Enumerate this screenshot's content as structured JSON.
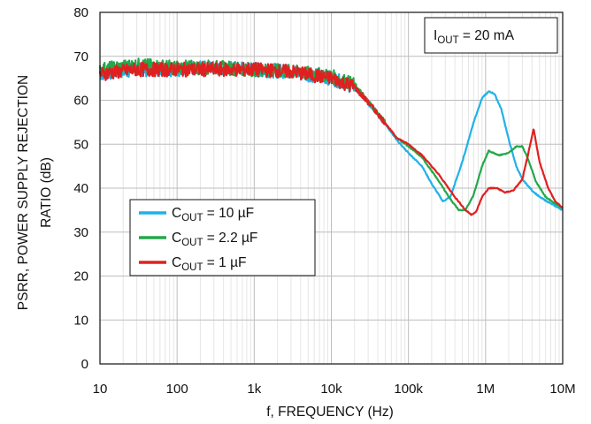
{
  "chart_data": {
    "type": "line",
    "xscale": "log",
    "xlim": [
      10,
      10000000
    ],
    "ylim": [
      0,
      80
    ],
    "xlabel": "f, FREQUENCY (Hz)",
    "ylabel_line1": "PSRR, POWER SUPPLY REJECTION",
    "ylabel_line2": "RATIO (dB)",
    "x_ticks": [
      {
        "value": 10,
        "label": "10"
      },
      {
        "value": 100,
        "label": "100"
      },
      {
        "value": 1000,
        "label": "1k"
      },
      {
        "value": 10000,
        "label": "10k"
      },
      {
        "value": 100000,
        "label": "100k"
      },
      {
        "value": 1000000,
        "label": "1M"
      },
      {
        "value": 10000000,
        "label": "10M"
      }
    ],
    "y_ticks": [
      {
        "value": 0,
        "label": "0"
      },
      {
        "value": 10,
        "label": "10"
      },
      {
        "value": 20,
        "label": "20"
      },
      {
        "value": 30,
        "label": "30"
      },
      {
        "value": 40,
        "label": "40"
      },
      {
        "value": 50,
        "label": "50"
      },
      {
        "value": 60,
        "label": "60"
      },
      {
        "value": 70,
        "label": "70"
      },
      {
        "value": 80,
        "label": "80"
      }
    ],
    "grid": true,
    "annotation": {
      "main": "I",
      "sub": "OUT",
      "rest": " = 20 mA",
      "position": "top-right"
    },
    "legend_position": "center-left",
    "series": [
      {
        "name_main": "C",
        "name_sub": "OUT",
        "name_rest": " = 10 µF",
        "color": "#1fb2e8",
        "x": [
          10,
          30,
          100,
          300,
          1000,
          3000,
          10000,
          20000,
          40000,
          70000,
          100000,
          150000,
          200000,
          280000,
          350000,
          500000,
          700000,
          900000,
          1100000,
          1300000,
          1600000,
          2000000,
          2500000,
          3000000,
          4000000,
          5000000,
          7000000,
          10000000
        ],
        "y": [
          66,
          67,
          67,
          67.5,
          67,
          66.5,
          65,
          63,
          57,
          51,
          48,
          45,
          41,
          37,
          38,
          46,
          55,
          60.5,
          62,
          61.5,
          58,
          51,
          45,
          42,
          39.5,
          38,
          36.5,
          35
        ]
      },
      {
        "name_main": "C",
        "name_sub": "OUT",
        "name_rest": " = 2.2 µF",
        "color": "#23a84a",
        "x": [
          10,
          30,
          100,
          300,
          1000,
          3000,
          10000,
          20000,
          40000,
          70000,
          100000,
          150000,
          250000,
          350000,
          450000,
          550000,
          700000,
          900000,
          1100000,
          1500000,
          2000000,
          2500000,
          3000000,
          3500000,
          4500000,
          6000000,
          8000000,
          10000000
        ],
        "y": [
          67,
          68,
          67.5,
          67.5,
          67,
          66.5,
          65.5,
          63.5,
          57,
          51.5,
          49.5,
          47,
          41.5,
          37.5,
          35,
          35,
          38.5,
          45,
          48.5,
          47.5,
          48,
          49.5,
          49.5,
          47,
          41.5,
          38,
          36.5,
          35.5
        ]
      },
      {
        "name_main": "C",
        "name_sub": "OUT",
        "name_rest": " = 1 µF",
        "color": "#e02020",
        "x": [
          10,
          30,
          100,
          300,
          1000,
          3000,
          10000,
          20000,
          40000,
          70000,
          100000,
          150000,
          250000,
          400000,
          550000,
          650000,
          750000,
          900000,
          1100000,
          1400000,
          1800000,
          2300000,
          3000000,
          3700000,
          4200000,
          5000000,
          6500000,
          8000000,
          10000000
        ],
        "y": [
          66,
          67,
          67,
          67,
          67,
          66.5,
          65,
          63,
          57,
          51.5,
          50,
          47.5,
          43,
          38,
          35,
          34,
          34.5,
          38,
          40,
          40,
          39,
          39.5,
          42,
          49,
          53.5,
          46,
          40,
          37,
          35.5
        ]
      }
    ]
  }
}
